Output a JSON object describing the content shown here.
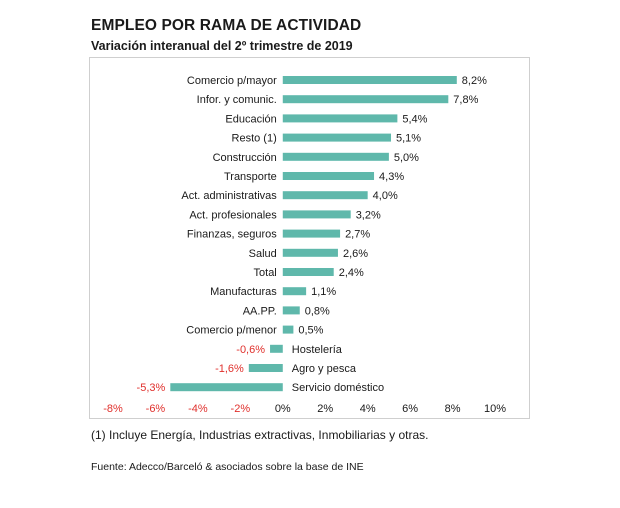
{
  "chart_data": {
    "type": "bar",
    "orientation": "horizontal",
    "title": "EMPLEO POR RAMA DE ACTIVIDAD",
    "subtitle": "Variación interanual del 2º trimestre de 2019",
    "xlim": [
      -8,
      10
    ],
    "x_ticks": [
      -8,
      -6,
      -4,
      -2,
      0,
      2,
      4,
      6,
      8,
      10
    ],
    "x_tick_labels": [
      "-8%",
      "-6%",
      "-4%",
      "-2%",
      "0%",
      "2%",
      "4%",
      "6%",
      "8%",
      "10%"
    ],
    "categories": [
      "Comercio p/mayor",
      "Infor. y comunic.",
      "Educación",
      "Resto (1)",
      "Construcción",
      "Transporte",
      "Act. administrativas",
      "Act. profesionales",
      "Finanzas, seguros",
      "Salud",
      "Total",
      "Manufacturas",
      "AA.PP.",
      "Comercio p/menor",
      "Hostelería",
      "Agro y pesca",
      "Servicio doméstico"
    ],
    "values": [
      8.2,
      7.8,
      5.4,
      5.1,
      5.0,
      4.3,
      4.0,
      3.2,
      2.7,
      2.6,
      2.4,
      1.1,
      0.8,
      0.5,
      -0.6,
      -1.6,
      -5.3
    ],
    "value_labels": [
      "8,2%",
      "7,8%",
      "5,4%",
      "5,1%",
      "5,0%",
      "4,3%",
      "4,0%",
      "3,2%",
      "2,7%",
      "2,6%",
      "2,4%",
      "1,1%",
      "0,8%",
      "0,5%",
      "-0,6%",
      "-1,6%",
      "-5,3%"
    ],
    "colors": {
      "bar": "#5fb8ab",
      "negative_text": "#e0302c",
      "text": "#1a1a1a",
      "frame": "#cfcfcf"
    }
  },
  "footnote": "(1) Incluye Energía, Industrias extractivas, Inmobiliarias y otras.",
  "source": "Fuente: Adecco/Barceló & asociados sobre la base de INE"
}
